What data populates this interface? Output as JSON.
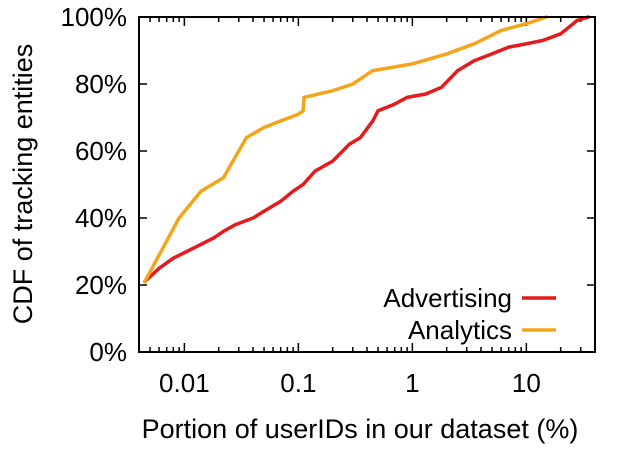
{
  "chart_data": {
    "type": "line",
    "xlabel": "Portion of userIDs in our dataset (%)",
    "ylabel": "CDF of tracking entities",
    "x_scale": "log",
    "xlim": [
      0.004,
      40
    ],
    "ylim": [
      0,
      100
    ],
    "x_ticks": [
      {
        "value": 0.01,
        "label": "0.01"
      },
      {
        "value": 0.1,
        "label": "0.1"
      },
      {
        "value": 1,
        "label": "1"
      },
      {
        "value": 10,
        "label": "10"
      }
    ],
    "y_ticks": [
      {
        "value": 0,
        "label": "0%"
      },
      {
        "value": 20,
        "label": "20%"
      },
      {
        "value": 40,
        "label": "40%"
      },
      {
        "value": 60,
        "label": "60%"
      },
      {
        "value": 80,
        "label": "80%"
      },
      {
        "value": 100,
        "label": "100%"
      }
    ],
    "grid": false,
    "legend_position": "bottom-right",
    "series": [
      {
        "name": "Advertising",
        "color": "#e41a1c",
        "points": [
          [
            0.0045,
            21
          ],
          [
            0.006,
            25
          ],
          [
            0.008,
            28
          ],
          [
            0.012,
            31
          ],
          [
            0.018,
            34
          ],
          [
            0.022,
            36
          ],
          [
            0.028,
            38
          ],
          [
            0.04,
            40
          ],
          [
            0.05,
            42
          ],
          [
            0.07,
            45
          ],
          [
            0.09,
            48
          ],
          [
            0.11,
            50
          ],
          [
            0.14,
            54
          ],
          [
            0.2,
            57
          ],
          [
            0.28,
            62
          ],
          [
            0.35,
            64
          ],
          [
            0.45,
            69
          ],
          [
            0.5,
            72
          ],
          [
            0.7,
            74
          ],
          [
            0.9,
            76
          ],
          [
            1.3,
            77
          ],
          [
            1.8,
            79
          ],
          [
            2.5,
            84
          ],
          [
            3.5,
            87
          ],
          [
            5,
            89
          ],
          [
            7,
            91
          ],
          [
            10,
            92
          ],
          [
            14,
            93
          ],
          [
            20,
            95
          ],
          [
            28,
            99
          ],
          [
            35,
            100
          ]
        ]
      },
      {
        "name": "Analytics",
        "color": "#f5a41a",
        "points": [
          [
            0.0045,
            21
          ],
          [
            0.009,
            40
          ],
          [
            0.014,
            48
          ],
          [
            0.022,
            52
          ],
          [
            0.035,
            64
          ],
          [
            0.05,
            67
          ],
          [
            0.07,
            69
          ],
          [
            0.1,
            71
          ],
          [
            0.11,
            72
          ],
          [
            0.112,
            76
          ],
          [
            0.2,
            78
          ],
          [
            0.3,
            80
          ],
          [
            0.45,
            84
          ],
          [
            1,
            86
          ],
          [
            2,
            89
          ],
          [
            3.5,
            92
          ],
          [
            6,
            96
          ],
          [
            10,
            98
          ],
          [
            15,
            100
          ]
        ]
      }
    ]
  }
}
